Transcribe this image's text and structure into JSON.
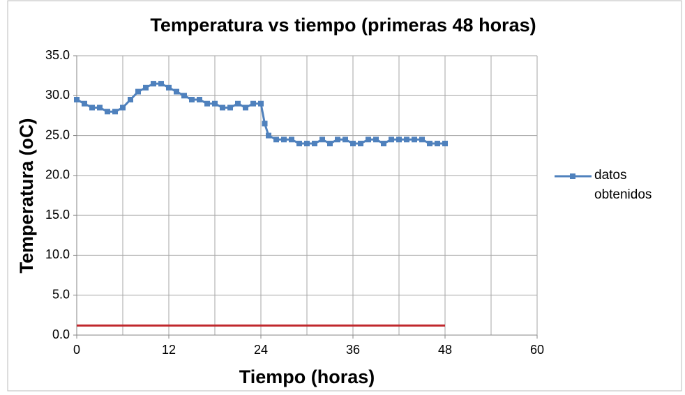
{
  "chart_data": {
    "type": "line",
    "title": "Temperatura vs tiempo (primeras 48 horas)",
    "x_label": "Tiempo (horas)",
    "y_label": "Temperatura (oC)",
    "xlim": [
      0,
      60
    ],
    "xticks": [
      0,
      12,
      24,
      36,
      48,
      60
    ],
    "x_minor_grid": [
      6,
      18,
      30,
      42,
      54
    ],
    "ylim": [
      0,
      35
    ],
    "yticks": [
      {
        "value": 0,
        "label": "0.0"
      },
      {
        "value": 5,
        "label": "5.0"
      },
      {
        "value": 10,
        "label": "10.0"
      },
      {
        "value": 15,
        "label": "15.0"
      },
      {
        "value": 20,
        "label": "20.0"
      },
      {
        "value": 25,
        "label": "25.0"
      },
      {
        "value": 30,
        "label": "30.0"
      },
      {
        "value": 35,
        "label": "35.0"
      }
    ],
    "grid": true,
    "legend": "right",
    "series": [
      {
        "name": "datos obtenidos",
        "color": "#4f81bd",
        "marker": "square",
        "x": [
          0,
          1,
          2,
          3,
          4,
          5,
          6,
          7,
          8,
          9,
          10,
          11,
          12,
          13,
          14,
          15,
          16,
          17,
          18,
          19,
          20,
          21,
          22,
          23,
          24,
          24.5,
          25,
          26,
          27,
          28,
          29,
          30,
          31,
          32,
          33,
          34,
          35,
          36,
          37,
          38,
          39,
          40,
          41,
          42,
          43,
          44,
          45,
          46,
          47,
          48
        ],
        "values": [
          29.5,
          29.0,
          28.5,
          28.5,
          28.0,
          28.0,
          28.5,
          29.5,
          30.5,
          31.0,
          31.5,
          31.5,
          31.0,
          30.5,
          30.0,
          29.5,
          29.5,
          29.0,
          29.0,
          28.5,
          28.5,
          29.0,
          28.5,
          29.0,
          29.0,
          26.5,
          25.0,
          24.5,
          24.5,
          24.5,
          24.0,
          24.0,
          24.0,
          24.5,
          24.0,
          24.5,
          24.5,
          24.0,
          24.0,
          24.5,
          24.5,
          24.0,
          24.5,
          24.5,
          24.5,
          24.5,
          24.5,
          24.0,
          24.0,
          24.0
        ]
      },
      {
        "color": "#c0282d",
        "x": [
          0,
          48
        ],
        "values": [
          1.2,
          1.2
        ]
      }
    ]
  }
}
